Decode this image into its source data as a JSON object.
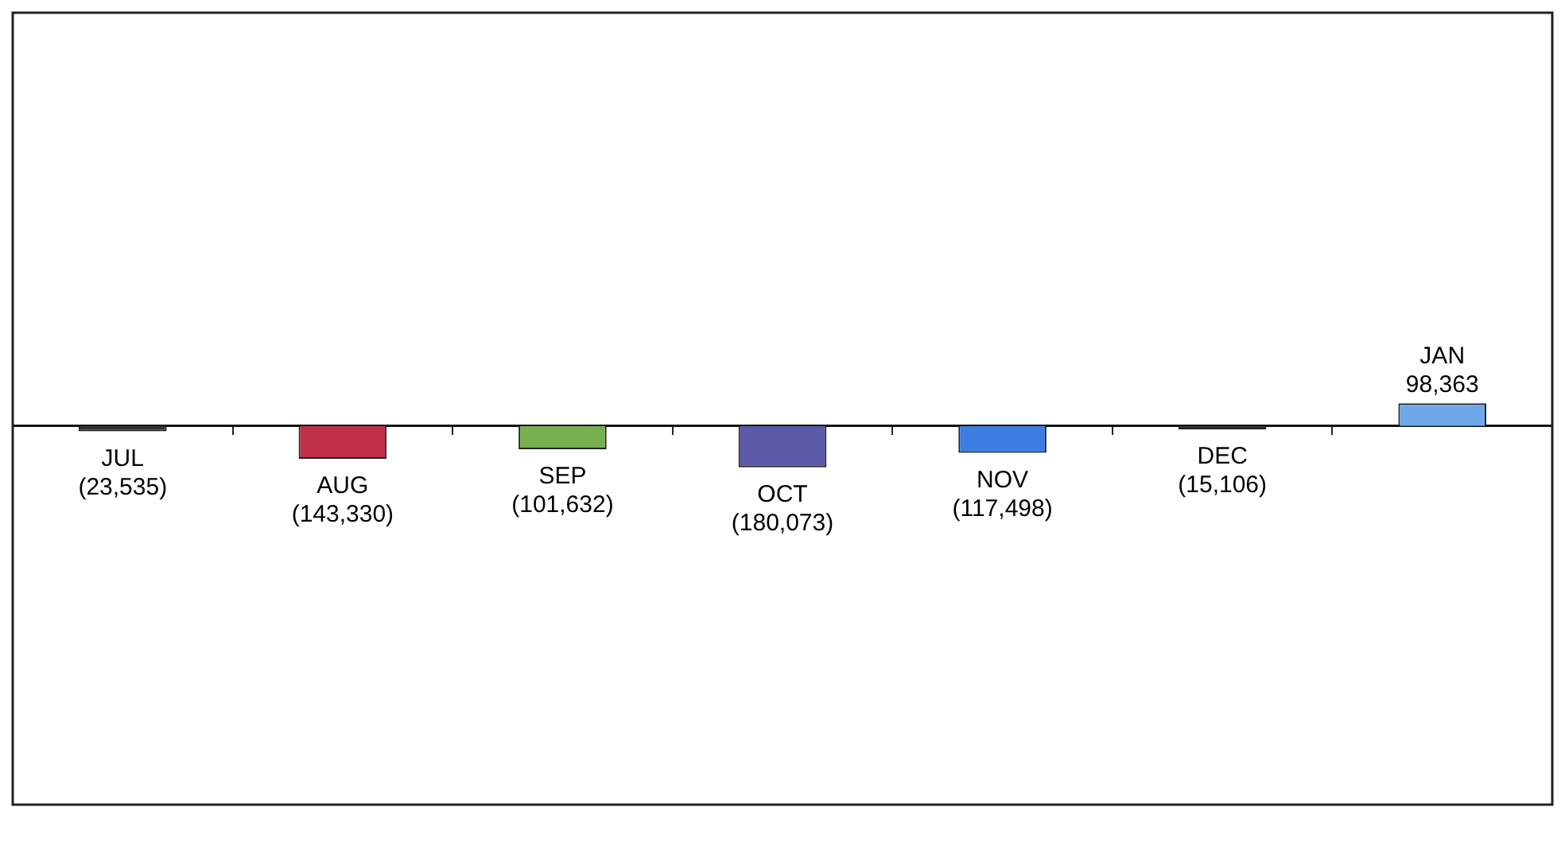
{
  "chart_data": {
    "type": "bar",
    "categories": [
      "JUL",
      "AUG",
      "SEP",
      "OCT",
      "NOV",
      "DEC",
      "JAN"
    ],
    "values": [
      -23535,
      -143330,
      -101632,
      -180073,
      -117498,
      -15106,
      98363
    ],
    "colors": [
      "#333333",
      "#c0304a",
      "#78b050",
      "#5a5aa8",
      "#3b7de0",
      "#333333",
      "#6fa8e8"
    ],
    "value_labels": [
      "(23,535)",
      "(143,330)",
      "(101,632)",
      "(180,073)",
      "(117,498)",
      "(15,106)",
      "98,363"
    ],
    "ylim": [
      -1650000,
      1800000
    ],
    "tick_labels": false,
    "grid": false,
    "legend": false
  }
}
